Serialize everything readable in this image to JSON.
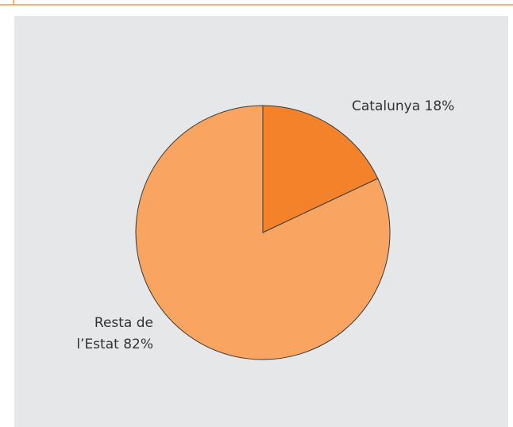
{
  "chart_data": {
    "type": "pie",
    "categories": [
      "Catalunya",
      "Resta de l’Estat"
    ],
    "values": [
      18,
      82
    ],
    "value_labels": [
      "18%",
      "82%"
    ],
    "colors": [
      "#f4822a",
      "#f9a461"
    ]
  }
}
